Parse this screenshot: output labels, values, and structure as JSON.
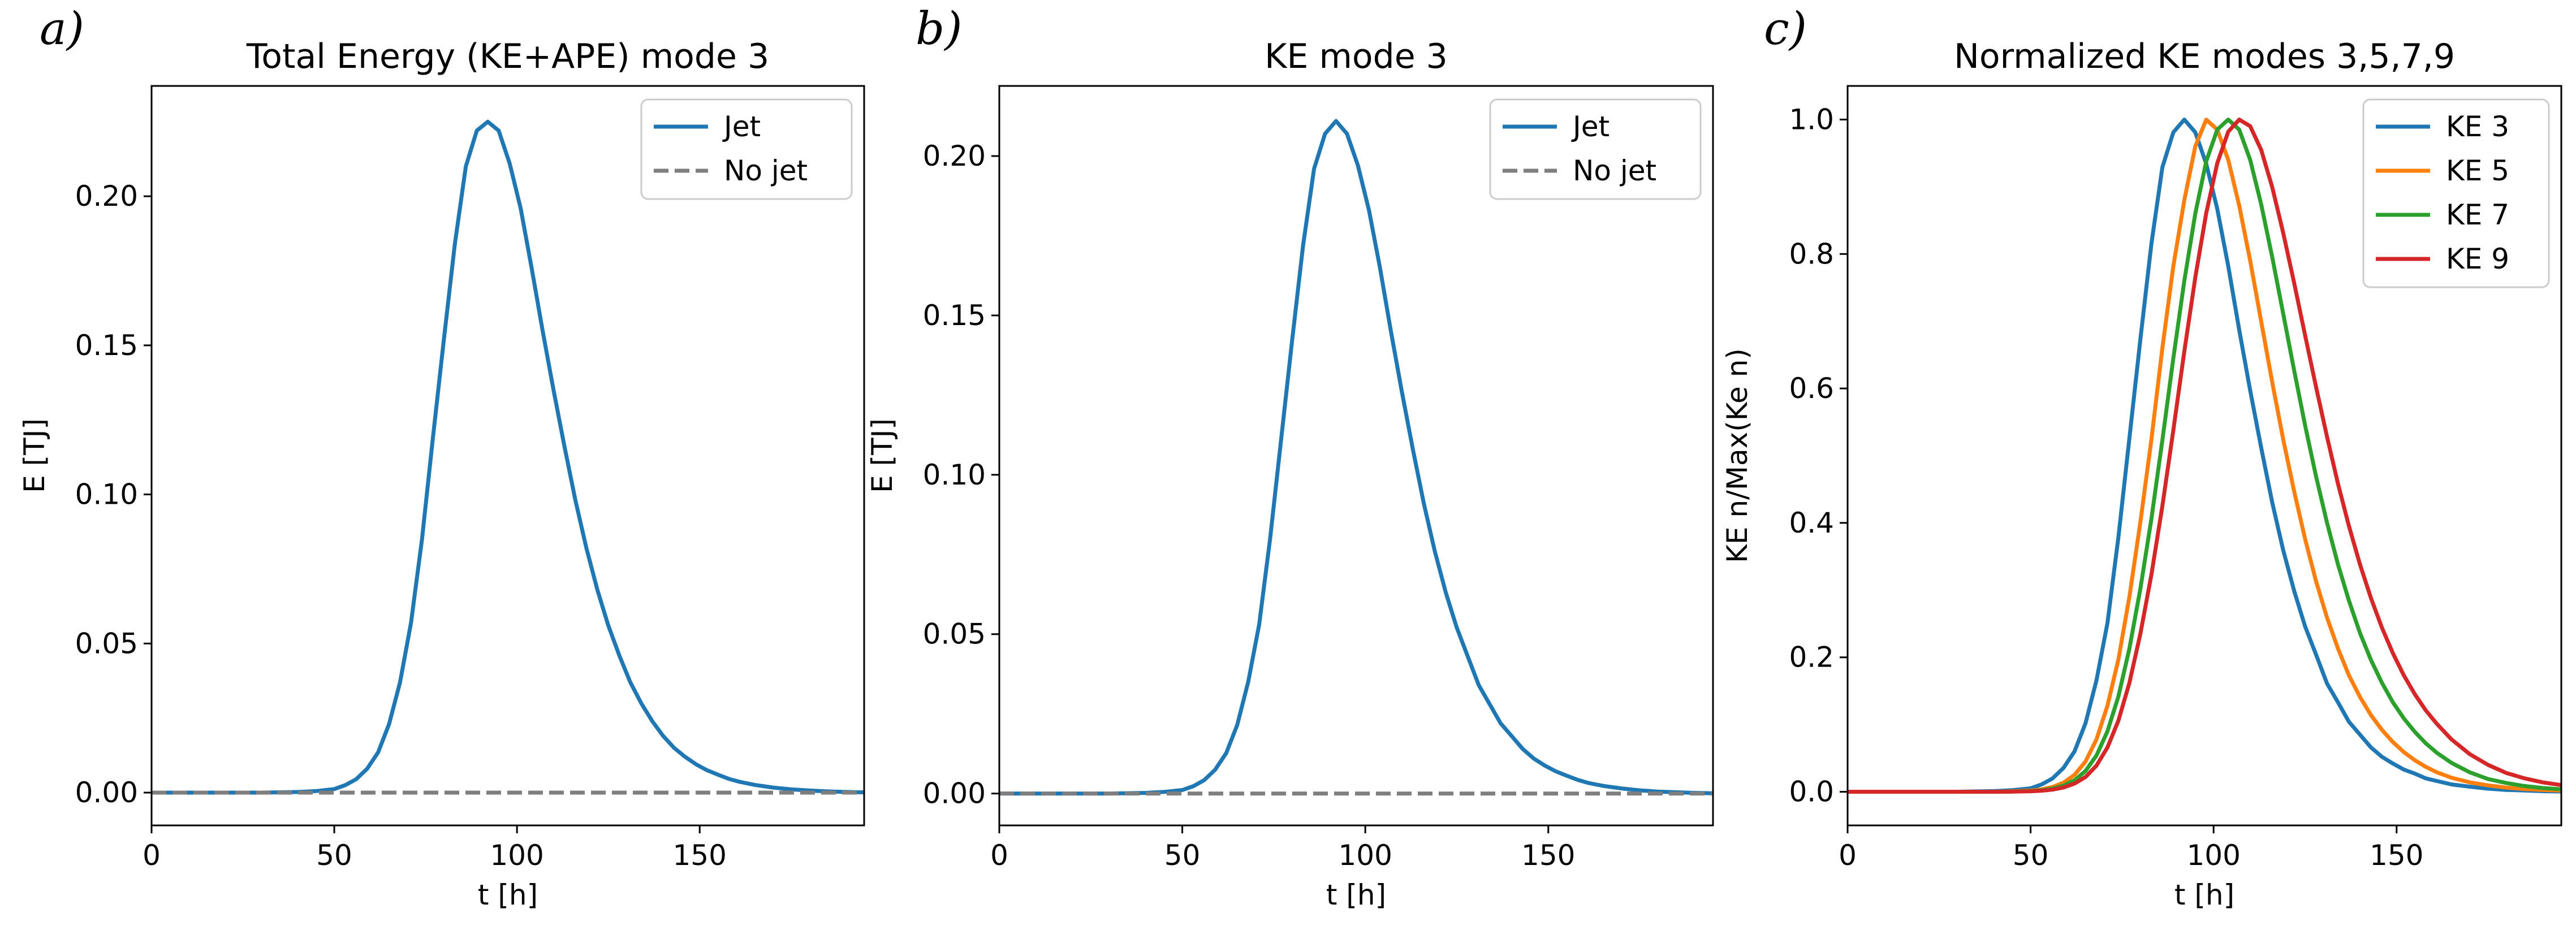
{
  "figure": {
    "panels": [
      {
        "letter": "a)",
        "title": "Total Energy (KE+APE) mode 3",
        "xlabel": "t [h]",
        "ylabel": "E [TJ]"
      },
      {
        "letter": "b)",
        "title": "KE mode 3",
        "xlabel": "t [h]",
        "ylabel": "E [TJ]"
      },
      {
        "letter": "c)",
        "title": "Normalized KE modes 3,5,7,9",
        "xlabel": "t [h]",
        "ylabel": "KE n/Max(Ke n)"
      }
    ]
  },
  "chart_data": [
    {
      "type": "line",
      "title": "Total Energy (KE+APE) mode 3",
      "xlabel": "t [h]",
      "ylabel": "E [TJ]",
      "xlim": [
        0,
        195
      ],
      "ylim": [
        -0.011,
        0.237
      ],
      "xticks": [
        "0",
        "50",
        "100",
        "150"
      ],
      "yticks": [
        "0.00",
        "0.05",
        "0.10",
        "0.15",
        "0.20"
      ],
      "legend": "top-right",
      "x": [
        0,
        10,
        20,
        30,
        40,
        45,
        50,
        53,
        56,
        59,
        62,
        65,
        68,
        71,
        74,
        77,
        80,
        83,
        86,
        89,
        92,
        95,
        98,
        101,
        104,
        107,
        110,
        113,
        116,
        119,
        122,
        125,
        128,
        131,
        134,
        137,
        140,
        143,
        146,
        149,
        152,
        155,
        158,
        161,
        165,
        170,
        175,
        180,
        185,
        190,
        195
      ],
      "series": [
        {
          "name": "Jet",
          "color": "#1f77b4",
          "dash": "solid",
          "values": [
            0,
            0,
            0,
            0,
            0.0002,
            0.0005,
            0.0012,
            0.0025,
            0.0045,
            0.008,
            0.0135,
            0.023,
            0.037,
            0.057,
            0.085,
            0.119,
            0.152,
            0.184,
            0.21,
            0.222,
            0.225,
            0.222,
            0.211,
            0.196,
            0.176,
            0.155,
            0.135,
            0.116,
            0.098,
            0.082,
            0.068,
            0.056,
            0.046,
            0.037,
            0.03,
            0.024,
            0.019,
            0.015,
            0.012,
            0.0095,
            0.0075,
            0.006,
            0.0046,
            0.0036,
            0.0026,
            0.0017,
            0.0011,
            0.0007,
            0.0004,
            0.0002,
            0.0001
          ]
        },
        {
          "name": "No jet",
          "color": "#7f7f7f",
          "dash": "dashed",
          "values": [
            0,
            0,
            0,
            0,
            0,
            0,
            0,
            0,
            0,
            0,
            0,
            0,
            0,
            0,
            0,
            0,
            0,
            0,
            0,
            0,
            0,
            0,
            0,
            0,
            0,
            0,
            0,
            0,
            0,
            0,
            0,
            0,
            0,
            0,
            0,
            0,
            0,
            0,
            0,
            0,
            0,
            0,
            0,
            0,
            0,
            0,
            0,
            0,
            0,
            0,
            0
          ]
        }
      ]
    },
    {
      "type": "line",
      "title": "KE mode 3",
      "xlabel": "t [h]",
      "ylabel": "E [TJ]",
      "xlim": [
        0,
        195
      ],
      "ylim": [
        -0.01,
        0.222
      ],
      "xticks": [
        "0",
        "50",
        "100",
        "150"
      ],
      "yticks": [
        "0.00",
        "0.05",
        "0.10",
        "0.15",
        "0.20"
      ],
      "legend": "top-right",
      "x": [
        0,
        10,
        20,
        30,
        40,
        45,
        50,
        53,
        56,
        59,
        62,
        65,
        68,
        71,
        74,
        77,
        80,
        83,
        86,
        89,
        92,
        95,
        98,
        101,
        104,
        107,
        110,
        113,
        116,
        119,
        122,
        125,
        128,
        131,
        134,
        137,
        140,
        143,
        146,
        149,
        152,
        155,
        158,
        161,
        165,
        170,
        175,
        180,
        185,
        190,
        195
      ],
      "series": [
        {
          "name": "Jet",
          "color": "#1f77b4",
          "dash": "solid",
          "values": [
            0,
            0,
            0,
            0,
            0.0002,
            0.0005,
            0.0011,
            0.0023,
            0.0042,
            0.0075,
            0.0127,
            0.0215,
            0.035,
            0.053,
            0.08,
            0.111,
            0.142,
            0.172,
            0.196,
            0.207,
            0.211,
            0.207,
            0.197,
            0.183,
            0.165,
            0.145,
            0.126,
            0.108,
            0.091,
            0.076,
            0.063,
            0.052,
            0.043,
            0.034,
            0.028,
            0.022,
            0.018,
            0.014,
            0.011,
            0.0088,
            0.007,
            0.0056,
            0.0043,
            0.0033,
            0.0024,
            0.0016,
            0.001,
            0.0006,
            0.0004,
            0.0002,
            0.0001
          ]
        },
        {
          "name": "No jet",
          "color": "#7f7f7f",
          "dash": "dashed",
          "values": [
            0,
            0,
            0,
            0,
            0,
            0,
            0,
            0,
            0,
            0,
            0,
            0,
            0,
            0,
            0,
            0,
            0,
            0,
            0,
            0,
            0,
            0,
            0,
            0,
            0,
            0,
            0,
            0,
            0,
            0,
            0,
            0,
            0,
            0,
            0,
            0,
            0,
            0,
            0,
            0,
            0,
            0,
            0,
            0,
            0,
            0,
            0,
            0,
            0,
            0,
            0
          ]
        }
      ]
    },
    {
      "type": "line",
      "title": "Normalized KE modes 3,5,7,9",
      "xlabel": "t [h]",
      "ylabel": "KE n/Max(Ke n)",
      "xlim": [
        0,
        195
      ],
      "ylim": [
        -0.05,
        1.05
      ],
      "xticks": [
        "0",
        "50",
        "100",
        "150"
      ],
      "yticks": [
        "0.0",
        "0.2",
        "0.4",
        "0.6",
        "0.8",
        "1.0"
      ],
      "legend": "top-right",
      "x": [
        0,
        10,
        20,
        30,
        40,
        45,
        50,
        53,
        56,
        59,
        62,
        65,
        68,
        71,
        74,
        77,
        80,
        83,
        86,
        89,
        92,
        95,
        98,
        101,
        104,
        107,
        110,
        113,
        116,
        119,
        122,
        125,
        128,
        131,
        134,
        137,
        140,
        143,
        146,
        149,
        152,
        155,
        158,
        161,
        165,
        170,
        175,
        180,
        185,
        190,
        195
      ],
      "series": [
        {
          "name": "KE 3",
          "color": "#1f77b4",
          "dash": "solid",
          "values": [
            0,
            0,
            0,
            0,
            0.001,
            0.0024,
            0.0052,
            0.0109,
            0.0199,
            0.0355,
            0.0602,
            0.102,
            0.166,
            0.251,
            0.379,
            0.526,
            0.673,
            0.815,
            0.929,
            0.981,
            1.0,
            0.981,
            0.934,
            0.867,
            0.782,
            0.687,
            0.597,
            0.512,
            0.431,
            0.36,
            0.299,
            0.246,
            0.204,
            0.161,
            0.133,
            0.104,
            0.085,
            0.066,
            0.052,
            0.042,
            0.033,
            0.027,
            0.02,
            0.016,
            0.011,
            0.0076,
            0.0047,
            0.0028,
            0.0019,
            0.0009,
            0.0005
          ]
        },
        {
          "name": "KE 5",
          "color": "#ff7f0e",
          "dash": "solid",
          "values": [
            0,
            0,
            0,
            0,
            0,
            0.0008,
            0.0019,
            0.0036,
            0.0071,
            0.0136,
            0.0252,
            0.045,
            0.078,
            0.128,
            0.197,
            0.29,
            0.401,
            0.524,
            0.66,
            0.782,
            0.88,
            0.96,
            1.0,
            0.985,
            0.94,
            0.872,
            0.79,
            0.7,
            0.61,
            0.525,
            0.447,
            0.376,
            0.313,
            0.259,
            0.213,
            0.173,
            0.141,
            0.114,
            0.092,
            0.074,
            0.059,
            0.047,
            0.037,
            0.029,
            0.021,
            0.014,
            0.0095,
            0.0063,
            0.0041,
            0.0027,
            0.0018
          ]
        },
        {
          "name": "KE 7",
          "color": "#2ca02c",
          "dash": "solid",
          "values": [
            0,
            0,
            0,
            0,
            0,
            0.0004,
            0.0012,
            0.0024,
            0.0048,
            0.0091,
            0.0171,
            0.031,
            0.054,
            0.09,
            0.142,
            0.213,
            0.302,
            0.406,
            0.523,
            0.645,
            0.76,
            0.86,
            0.938,
            0.985,
            1.0,
            0.985,
            0.94,
            0.874,
            0.796,
            0.712,
            0.627,
            0.545,
            0.469,
            0.4,
            0.338,
            0.284,
            0.236,
            0.196,
            0.162,
            0.133,
            0.109,
            0.089,
            0.072,
            0.058,
            0.043,
            0.029,
            0.019,
            0.013,
            0.0085,
            0.0056,
            0.0037
          ]
        },
        {
          "name": "KE 9",
          "color": "#d62728",
          "dash": "solid",
          "values": [
            0,
            0,
            0,
            0,
            0,
            0.0002,
            0.0008,
            0.0016,
            0.0032,
            0.0064,
            0.0122,
            0.022,
            0.039,
            0.066,
            0.106,
            0.162,
            0.235,
            0.323,
            0.425,
            0.538,
            0.655,
            0.765,
            0.861,
            0.935,
            0.982,
            1.0,
            0.99,
            0.955,
            0.9,
            0.832,
            0.757,
            0.679,
            0.602,
            0.528,
            0.458,
            0.395,
            0.338,
            0.288,
            0.244,
            0.206,
            0.173,
            0.145,
            0.121,
            0.101,
            0.078,
            0.056,
            0.04,
            0.028,
            0.02,
            0.014,
            0.01
          ]
        }
      ]
    }
  ]
}
